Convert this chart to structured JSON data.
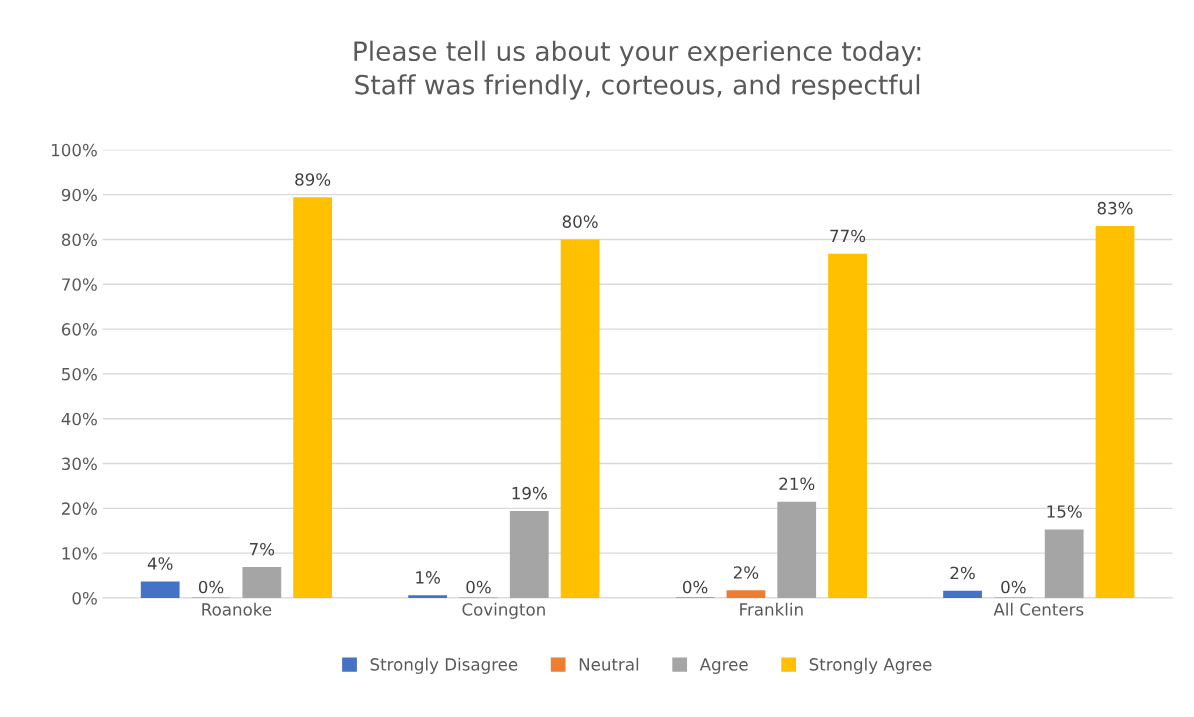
{
  "chart_data": {
    "type": "bar",
    "title": "Please tell us about your experience today:\nStaff was friendly, corteous, and respectful",
    "categories": [
      "Roanoke",
      "Covington",
      "Franklin",
      "All Centers"
    ],
    "series": [
      {
        "name": "Strongly Disagree",
        "color": "#4472c4",
        "values": [
          3.7,
          0.6,
          0,
          1.6
        ],
        "value_labels": [
          "4%",
          "1%",
          "0%",
          "2%"
        ]
      },
      {
        "name": "Neutral",
        "color": "#ed7d31",
        "values": [
          0,
          0,
          1.7,
          0
        ],
        "value_labels": [
          "0%",
          "0%",
          "2%",
          "0%"
        ]
      },
      {
        "name": "Agree",
        "color": "#a5a5a5",
        "values": [
          6.9,
          19.4,
          21.5,
          15.3
        ],
        "value_labels": [
          "7%",
          "19%",
          "21%",
          "15%"
        ]
      },
      {
        "name": "Strongly Agree",
        "color": "#ffc000",
        "values": [
          89.4,
          80,
          76.8,
          83
        ],
        "value_labels": [
          "89%",
          "80%",
          "77%",
          "83%"
        ]
      }
    ],
    "ylim": [
      0,
      100
    ],
    "yticks": [
      {
        "value": 0,
        "label": "0%"
      },
      {
        "value": 10,
        "label": "10%"
      },
      {
        "value": 20,
        "label": "20%"
      },
      {
        "value": 30,
        "label": "30%"
      },
      {
        "value": 40,
        "label": "40%"
      },
      {
        "value": 50,
        "label": "50%"
      },
      {
        "value": 60,
        "label": "60%"
      },
      {
        "value": 70,
        "label": "70%"
      },
      {
        "value": 80,
        "label": "80%"
      },
      {
        "value": 90,
        "label": "90%"
      },
      {
        "value": 100,
        "label": "100%"
      }
    ],
    "grid": "y",
    "legend": "bottom"
  }
}
